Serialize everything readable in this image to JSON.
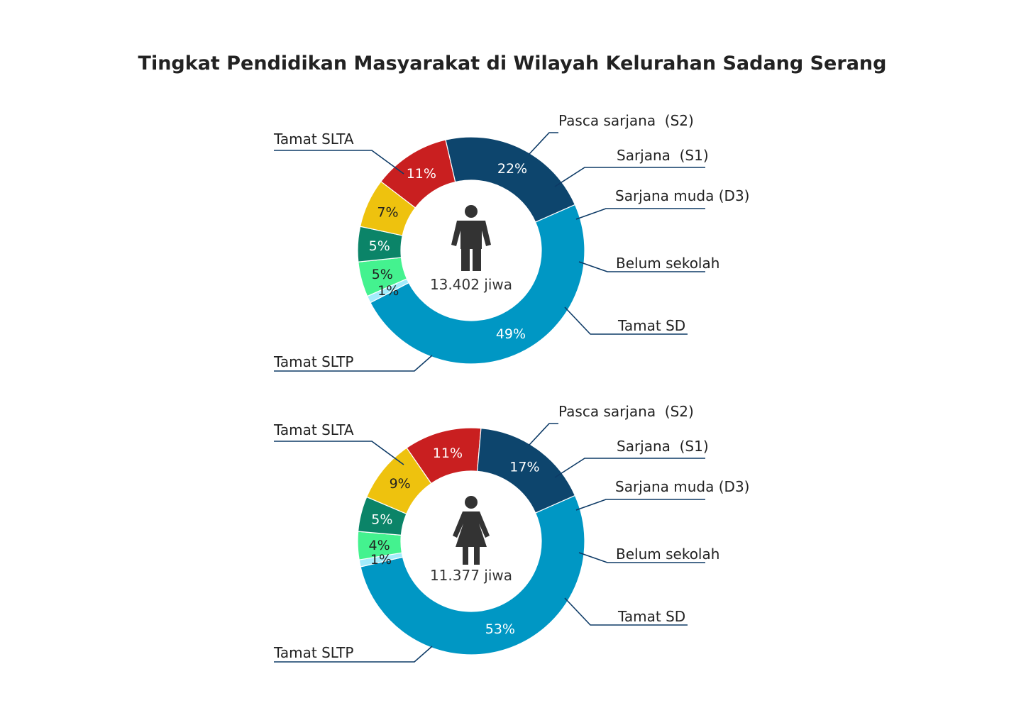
{
  "title": "Tingkat Pendidikan Masyarakat di Wilayah Kelurahan Sadang Serang",
  "colors": {
    "Tamat SLTA": "#0097c4",
    "Pasca sarjana  (S2)": "#a3ecfb",
    "Sarjana  (S1)": "#44f28f",
    "Sarjana muda (D3)": "#0b8468",
    "Belum sekolah": "#eec20e",
    "Tamat SD": "#c91f20",
    "Tamat SLTP": "#0d456d"
  },
  "chart_data": [
    {
      "type": "pie",
      "donut": true,
      "icon": "male-person-icon",
      "total_label": "13.402 jiwa",
      "categories": [
        "Tamat SLTA",
        "Pasca sarjana  (S2)",
        "Sarjana  (S1)",
        "Sarjana muda (D3)",
        "Belum sekolah",
        "Tamat SD",
        "Tamat SLTP"
      ],
      "values": [
        49,
        1,
        5,
        5,
        7,
        11,
        22
      ],
      "value_labels": [
        "49%",
        "1%",
        "5%",
        "5%",
        "7%",
        "11%",
        "22%"
      ]
    },
    {
      "type": "pie",
      "donut": true,
      "icon": "female-person-icon",
      "total_label": "11.377 jiwa",
      "categories": [
        "Tamat SLTA",
        "Pasca sarjana  (S2)",
        "Sarjana  (S1)",
        "Sarjana muda (D3)",
        "Belum sekolah",
        "Tamat SD",
        "Tamat SLTP"
      ],
      "values": [
        53,
        1,
        4,
        5,
        9,
        11,
        17
      ],
      "value_labels": [
        "53%",
        "1%",
        "4%",
        "5%",
        "9%",
        "11%",
        "17%"
      ]
    }
  ]
}
